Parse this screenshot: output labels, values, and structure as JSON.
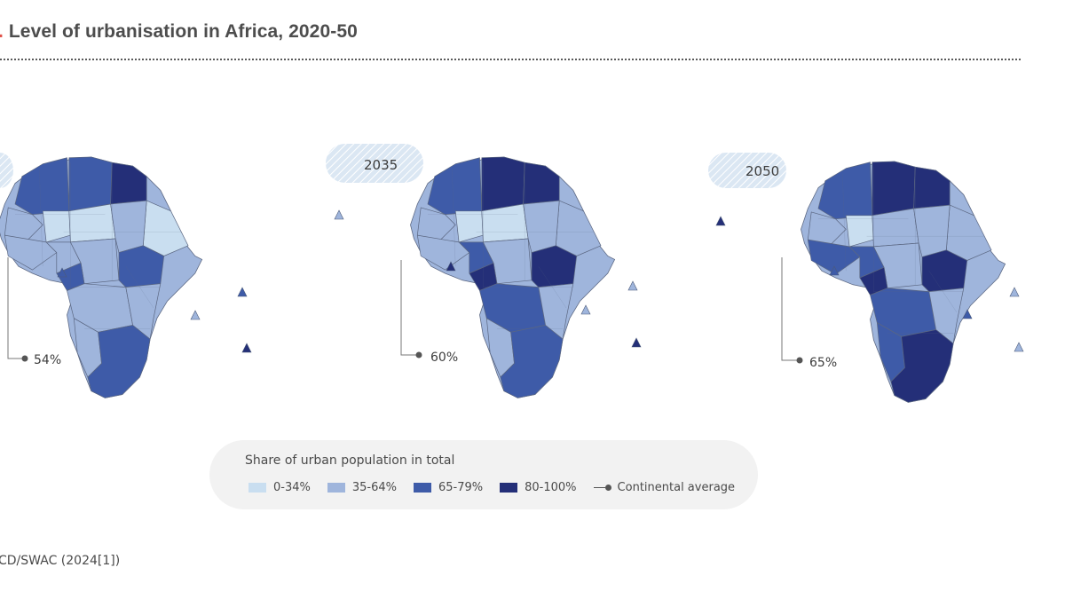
{
  "title": {
    "number": ".",
    "text": " Level of urbanisation in Africa, 2020-50"
  },
  "colors": {
    "c0": "#c9def0",
    "c1": "#9fb5dc",
    "c2": "#3e5ba8",
    "c3": "#242f78"
  },
  "maps": [
    {
      "year": "",
      "average": "54%"
    },
    {
      "year": "2035",
      "average": "60%"
    },
    {
      "year": "2050",
      "average": "65%"
    }
  ],
  "legend": {
    "title": "Share of urban population in total",
    "items": [
      {
        "label": "0-34%",
        "color": "#c9def0"
      },
      {
        "label": "35-64%",
        "color": "#9fb5dc"
      },
      {
        "label": "65-79%",
        "color": "#3e5ba8"
      },
      {
        "label": "80-100%",
        "color": "#242f78"
      }
    ],
    "average_label": "Continental average"
  },
  "source": "CD/SWAC (2024[1])"
}
